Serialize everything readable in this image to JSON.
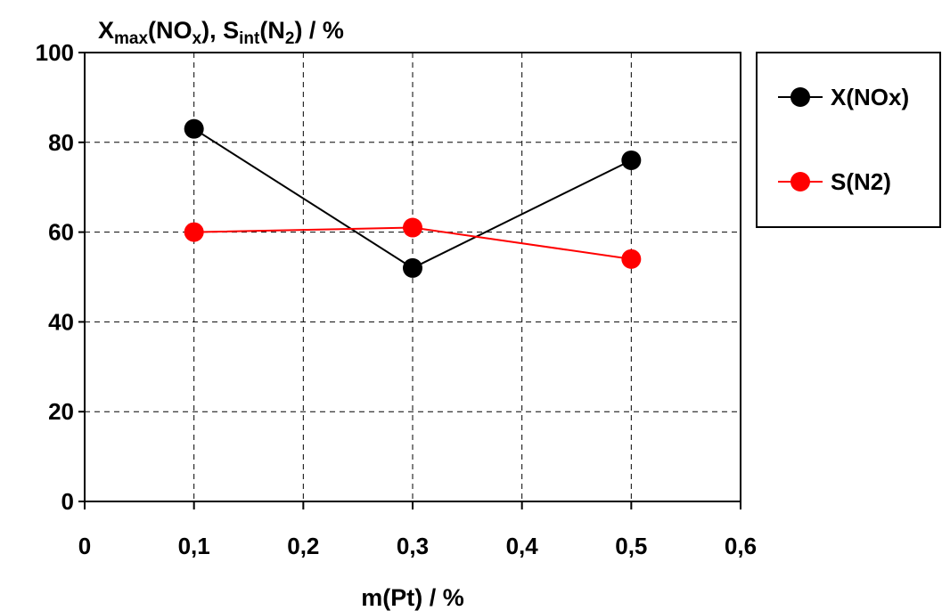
{
  "chart_data": {
    "type": "line",
    "title": "",
    "ylabel": {
      "parts": [
        {
          "text": "X",
          "sub": false
        },
        {
          "text": "max",
          "sub": true
        },
        {
          "text": "(NO",
          "sub": false
        },
        {
          "text": "x",
          "sub": true
        },
        {
          "text": "), S",
          "sub": false
        },
        {
          "text": "int",
          "sub": true
        },
        {
          "text": "(N",
          "sub": false
        },
        {
          "text": "2",
          "sub": true
        },
        {
          "text": ") / %",
          "sub": false
        }
      ]
    },
    "xlabel": "m(Pt) / %",
    "xlim": [
      0,
      0.6
    ],
    "ylim": [
      0,
      100
    ],
    "xticks": [
      0,
      0.1,
      0.2,
      0.3,
      0.4,
      0.5,
      0.6
    ],
    "xtick_labels": [
      "0",
      "0,1",
      "0,2",
      "0,3",
      "0,4",
      "0,5",
      "0,6"
    ],
    "yticks": [
      0,
      20,
      40,
      60,
      80,
      100
    ],
    "ytick_labels": [
      "0",
      "20",
      "40",
      "60",
      "80",
      "100"
    ],
    "grid": true,
    "legend_position": "right",
    "series": [
      {
        "name": "X(NOx)",
        "color": "#000000",
        "x": [
          0.1,
          0.3,
          0.5
        ],
        "y": [
          83,
          52,
          76
        ]
      },
      {
        "name": "S(N2)",
        "color": "#ff0000",
        "x": [
          0.1,
          0.3,
          0.5
        ],
        "y": [
          60,
          61,
          54
        ]
      }
    ]
  }
}
